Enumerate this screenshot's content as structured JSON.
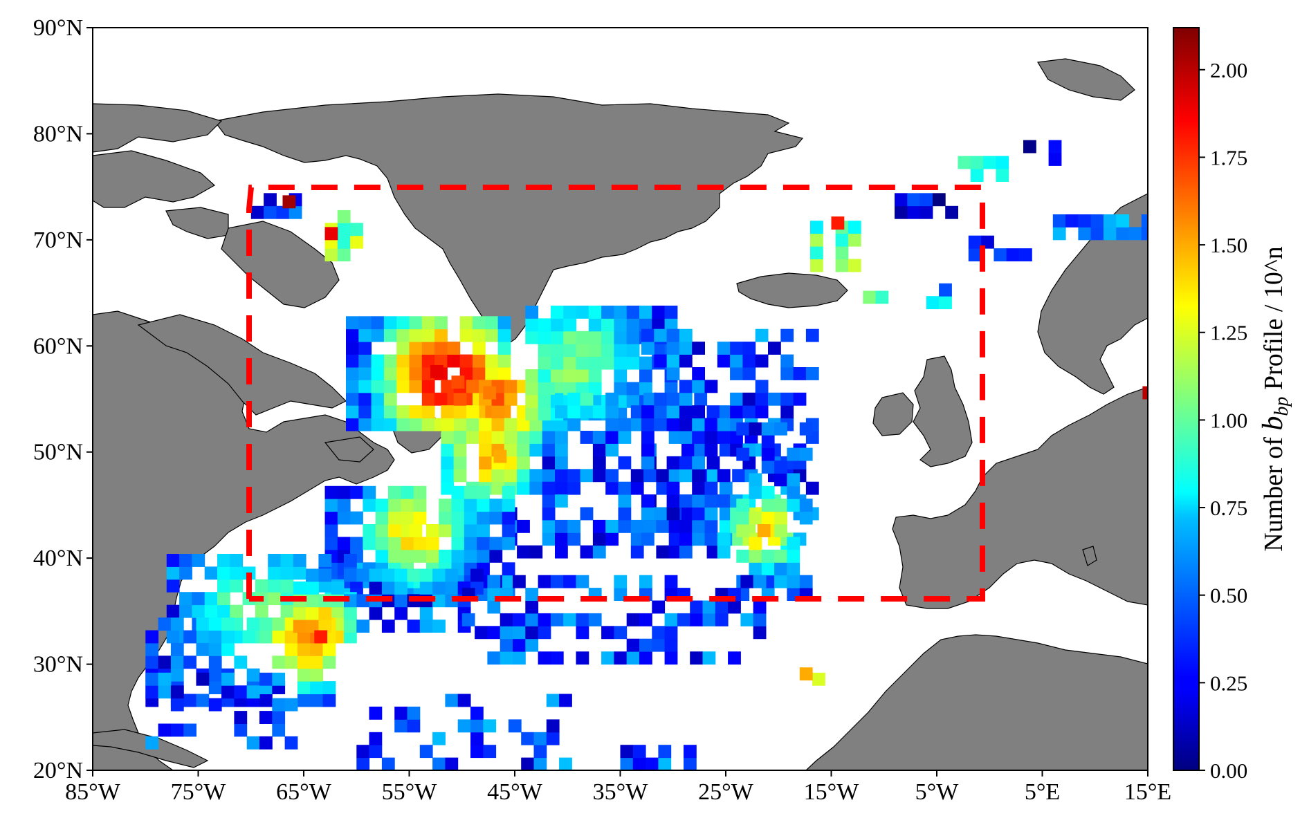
{
  "map": {
    "extent": {
      "lon": [
        -85,
        15
      ],
      "lat": [
        20,
        90
      ]
    },
    "land_color": "#808080",
    "ocean_color": "#ffffff",
    "cell_size_deg": 1.2
  },
  "axes": {
    "x_ticks": [
      {
        "value": -85,
        "label": "85°W"
      },
      {
        "value": -75,
        "label": "75°W"
      },
      {
        "value": -65,
        "label": "65°W"
      },
      {
        "value": -55,
        "label": "55°W"
      },
      {
        "value": -45,
        "label": "45°W"
      },
      {
        "value": -35,
        "label": "35°W"
      },
      {
        "value": -25,
        "label": "25°W"
      },
      {
        "value": -15,
        "label": "15°W"
      },
      {
        "value": -5,
        "label": "5°W"
      },
      {
        "value": 5,
        "label": "5°E"
      },
      {
        "value": 15,
        "label": "15°E"
      }
    ],
    "y_ticks": [
      {
        "value": 20,
        "label": "20°N"
      },
      {
        "value": 30,
        "label": "30°N"
      },
      {
        "value": 40,
        "label": "40°N"
      },
      {
        "value": 50,
        "label": "50°N"
      },
      {
        "value": 60,
        "label": "60°N"
      },
      {
        "value": 70,
        "label": "70°N"
      },
      {
        "value": 80,
        "label": "80°N"
      },
      {
        "value": 90,
        "label": "90°N"
      }
    ]
  },
  "region_box": {
    "lon": [
      -70,
      0
    ],
    "lat": [
      36,
      75
    ],
    "color": "#ff0000",
    "style": "dashed"
  },
  "colorbar": {
    "title_prefix": "Number of ",
    "title_symbol": "b",
    "title_subscript": "bp",
    "title_suffix": " Profile / 10^n",
    "range": [
      0,
      2.12
    ],
    "colormap": "jet",
    "ticks": [
      {
        "value": 0.0,
        "label": "0.00"
      },
      {
        "value": 0.25,
        "label": "0.25"
      },
      {
        "value": 0.5,
        "label": "0.50"
      },
      {
        "value": 0.75,
        "label": "0.75"
      },
      {
        "value": 1.0,
        "label": "1.00"
      },
      {
        "value": 1.25,
        "label": "1.25"
      },
      {
        "value": 1.5,
        "label": "1.50"
      },
      {
        "value": 1.75,
        "label": "1.75"
      },
      {
        "value": 2.0,
        "label": "2.00"
      }
    ]
  },
  "chart_data": {
    "type": "heatmap",
    "description_units": "log10 count of bbp profiles per grid cell",
    "sample_cells": [
      {
        "lon": -53,
        "lat": 57,
        "value": 1.9
      },
      {
        "lon": -51,
        "lat": 56,
        "value": 1.7
      },
      {
        "lon": -48,
        "lat": 55,
        "value": 1.6
      },
      {
        "lon": -47,
        "lat": 49,
        "value": 1.5
      },
      {
        "lon": -55,
        "lat": 42,
        "value": 1.3
      },
      {
        "lon": -66,
        "lat": 32,
        "value": 1.5
      },
      {
        "lon": -64,
        "lat": 32,
        "value": 1.8
      },
      {
        "lon": -67,
        "lat": 73,
        "value": 2.05
      },
      {
        "lon": -63,
        "lat": 70,
        "value": 1.9
      },
      {
        "lon": -15,
        "lat": 71,
        "value": 1.8
      },
      {
        "lon": -22,
        "lat": 42,
        "value": 1.5
      },
      {
        "lon": -18,
        "lat": 28.5,
        "value": 1.5
      },
      {
        "lon": 14.5,
        "lat": 55,
        "value": 2.0
      }
    ]
  }
}
